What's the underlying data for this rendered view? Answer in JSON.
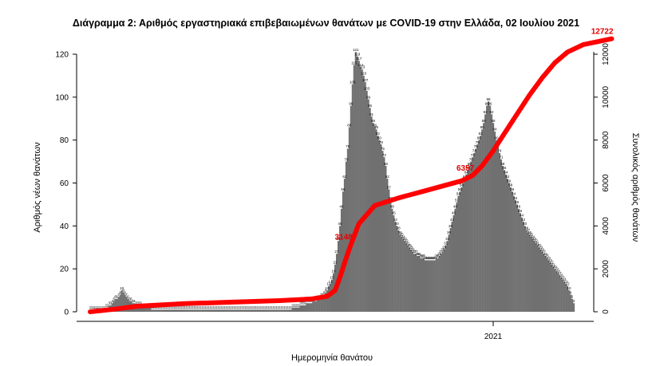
{
  "chart_data": {
    "type": "bar",
    "title": "Διάγραμμα 2: Αριθμός εργαστηριακά επιβεβαιωμένων θανάτων με COVID-19 στην Ελλάδα, 02 Ιουλίου 2021",
    "xlabel": "Ημερομηνία θανάτου",
    "ylabel": "Αριθμός νέων θανάτων",
    "y2label": "Συνολικός αριθμός θανάτων",
    "ylim": [
      0,
      125
    ],
    "y2lim": [
      0,
      12722
    ],
    "yticks": [
      "0",
      "20",
      "40",
      "60",
      "80",
      "100",
      "120"
    ],
    "y2ticks": [
      "0",
      "2000",
      "4000",
      "6000",
      "8000",
      "10000",
      "12000"
    ],
    "xticks": [
      {
        "label": "2021",
        "index": 255
      }
    ],
    "grid": false,
    "colors": {
      "bars": "#707070",
      "cumulative": "#ff0000",
      "annotation": "#e30000"
    },
    "series": [
      {
        "name": "",
        "role": "daily",
        "values": [
          1,
          1,
          1,
          1,
          1,
          1,
          1,
          1,
          1,
          1,
          2,
          2,
          3,
          3,
          4,
          5,
          6,
          6,
          7,
          8,
          10,
          9,
          8,
          7,
          6,
          5,
          5,
          4,
          4,
          3,
          3,
          3,
          3,
          2,
          2,
          2,
          2,
          2,
          2,
          1,
          1,
          1,
          1,
          1,
          1,
          1,
          1,
          1,
          1,
          1,
          1,
          1,
          1,
          1,
          1,
          1,
          1,
          1,
          1,
          1,
          1,
          1,
          1,
          1,
          1,
          1,
          1,
          1,
          1,
          1,
          1,
          1,
          1,
          1,
          1,
          1,
          1,
          1,
          1,
          1,
          1,
          1,
          1,
          1,
          1,
          1,
          1,
          1,
          1,
          1,
          1,
          1,
          1,
          1,
          1,
          1,
          1,
          1,
          1,
          1,
          1,
          1,
          1,
          1,
          1,
          1,
          1,
          1,
          1,
          1,
          1,
          1,
          1,
          1,
          1,
          1,
          1,
          1,
          1,
          1,
          1,
          1,
          1,
          1,
          1,
          1,
          1,
          1,
          2,
          2,
          2,
          2,
          2,
          3,
          3,
          3,
          3,
          4,
          4,
          4,
          4,
          5,
          5,
          5,
          6,
          6,
          7,
          7,
          8,
          9,
          10,
          12,
          13,
          15,
          18,
          22,
          27,
          33,
          40,
          48,
          56,
          62,
          70,
          76,
          86,
          96,
          106,
          115,
          121,
          119,
          117,
          114,
          113,
          110,
          107,
          103,
          99,
          95,
          91,
          88,
          86,
          85,
          82,
          80,
          78,
          75,
          72,
          68,
          62,
          57,
          52,
          48,
          45,
          42,
          40,
          38,
          36,
          35,
          34,
          33,
          32,
          31,
          30,
          29,
          28,
          27,
          27,
          26,
          26,
          25,
          25,
          25,
          24,
          24,
          24,
          24,
          24,
          24,
          24,
          25,
          25,
          26,
          27,
          28,
          29,
          31,
          33,
          36,
          39,
          42,
          45,
          48,
          51,
          54,
          56,
          58,
          60,
          62,
          64,
          66,
          68,
          70,
          72,
          74,
          76,
          78,
          80,
          82,
          85,
          88,
          92,
          96,
          98,
          96,
          92,
          88,
          84,
          80,
          77,
          74,
          71,
          68,
          66,
          64,
          62,
          60,
          58,
          56,
          54,
          52,
          50,
          48,
          46,
          44,
          42,
          40,
          38,
          37,
          36,
          35,
          34,
          33,
          32,
          31,
          30,
          29,
          28,
          27,
          26,
          25,
          24,
          23,
          22,
          21,
          20,
          19,
          18,
          17,
          16,
          15,
          14,
          13,
          12,
          10,
          8,
          6,
          4
        ]
      },
      {
        "name": "",
        "role": "cumulative",
        "axis": "right",
        "values": [
          0,
          120,
          260,
          380,
          450,
          520,
          600,
          720,
          1000,
          1600,
          2500,
          3148,
          4100,
          4950,
          5300,
          5600,
          5900,
          6100,
          6357,
          6800,
          7500,
          8300,
          9200,
          10100,
          10900,
          11600,
          12100,
          12450,
          12722
        ],
        "x_index": [
          0,
          15,
          30,
          60,
          90,
          120,
          140,
          150,
          155,
          158,
          162,
          165,
          170,
          180,
          195,
          210,
          225,
          235,
          242,
          248,
          255,
          262,
          270,
          278,
          286,
          294,
          302,
          312,
          330
        ]
      }
    ],
    "annotations": [
      {
        "text": "3148",
        "series": "cumulative",
        "index": 11
      },
      {
        "text": "6357",
        "series": "cumulative",
        "index": 18
      },
      {
        "text": "12722",
        "series": "cumulative",
        "index": 28
      }
    ]
  }
}
